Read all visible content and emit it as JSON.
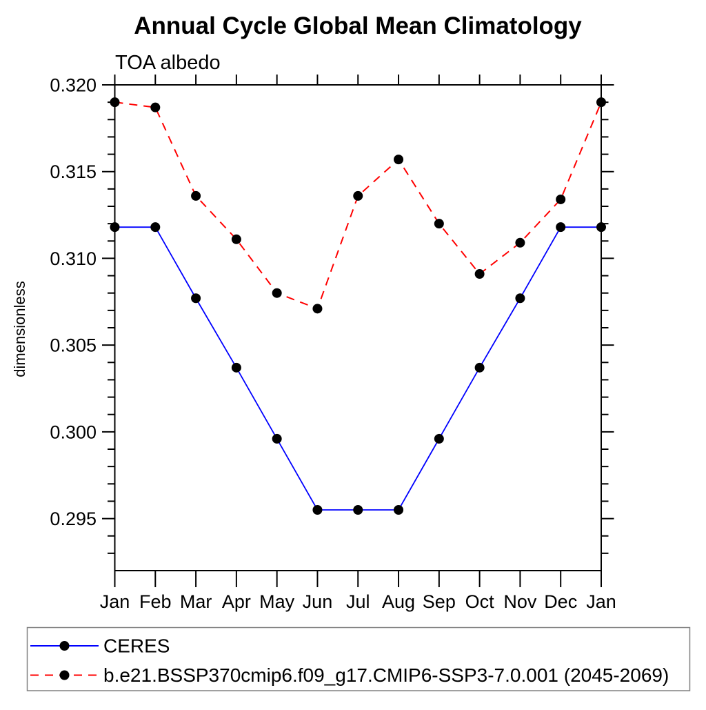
{
  "title": "Annual Cycle Global Mean Climatology",
  "subtitle": "TOA albedo",
  "chart_data": {
    "type": "line",
    "title": "Annual Cycle Global Mean Climatology",
    "subtitle": "TOA albedo",
    "xlabel": "",
    "ylabel": "dimensionless",
    "categories": [
      "Jan",
      "Feb",
      "Mar",
      "Apr",
      "May",
      "Jun",
      "Jul",
      "Aug",
      "Sep",
      "Oct",
      "Nov",
      "Dec",
      "Jan"
    ],
    "ylim": [
      0.292,
      0.32
    ],
    "y_ticks": [
      0.295,
      0.3,
      0.305,
      0.31,
      0.315,
      0.32
    ],
    "y_tick_labels": [
      "0.295",
      "0.300",
      "0.305",
      "0.310",
      "0.315",
      "0.320"
    ],
    "y_minor_step": 0.001,
    "grid": false,
    "legend_position": "bottom",
    "marker": "filled-circle",
    "marker_color": "#000000",
    "series": [
      {
        "name": "CERES",
        "color": "#0000ff",
        "line_style": "solid",
        "values": [
          0.3118,
          0.3118,
          0.3077,
          0.3037,
          0.2996,
          0.2955,
          0.2955,
          0.2955,
          0.2996,
          0.3037,
          0.3077,
          0.3118,
          0.3118
        ]
      },
      {
        "name": "b.e21.BSSP370cmip6.f09_g17.CMIP6-SSP3-7.0.001 (2045-2069)",
        "color": "#ff0000",
        "line_style": "dashed",
        "values": [
          0.319,
          0.3187,
          0.3136,
          0.3111,
          0.308,
          0.3071,
          0.3136,
          0.3157,
          0.312,
          0.3091,
          0.3109,
          0.3134,
          0.319
        ]
      }
    ]
  }
}
